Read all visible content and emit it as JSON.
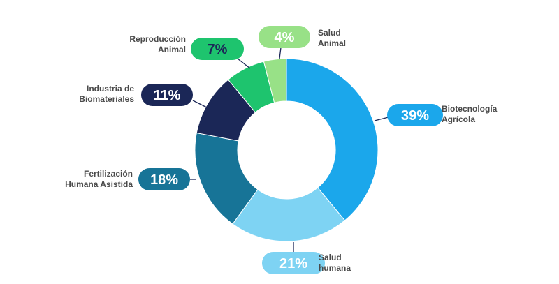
{
  "chart_data": {
    "type": "pie",
    "donut": true,
    "title": "",
    "slices": [
      {
        "label_lines": [
          "Biotecnología",
          "Agrícola"
        ],
        "value": 39,
        "value_label": "39%",
        "color": "#1ba7eb",
        "pill_text_color": "#ffffff"
      },
      {
        "label_lines": [
          "Salud",
          "humana"
        ],
        "value": 21,
        "value_label": "21%",
        "color": "#7ed3f3",
        "pill_text_color": "#ffffff"
      },
      {
        "label_lines": [
          "Fertilización",
          "Humana Asistida"
        ],
        "value": 18,
        "value_label": "18%",
        "color": "#177497",
        "pill_text_color": "#ffffff"
      },
      {
        "label_lines": [
          "Industria de",
          "Biomateriales"
        ],
        "value": 11,
        "value_label": "11%",
        "color": "#1b2757",
        "pill_text_color": "#ffffff"
      },
      {
        "label_lines": [
          "Reproducción",
          "Animal"
        ],
        "value": 7,
        "value_label": "7%",
        "color": "#1ec46e",
        "pill_text_color": "#1b2757"
      },
      {
        "label_lines": [
          "Salud",
          "Animal"
        ],
        "value": 4,
        "value_label": "4%",
        "color": "#98e187",
        "pill_text_color": "#ffffff"
      }
    ],
    "legend": "none"
  }
}
